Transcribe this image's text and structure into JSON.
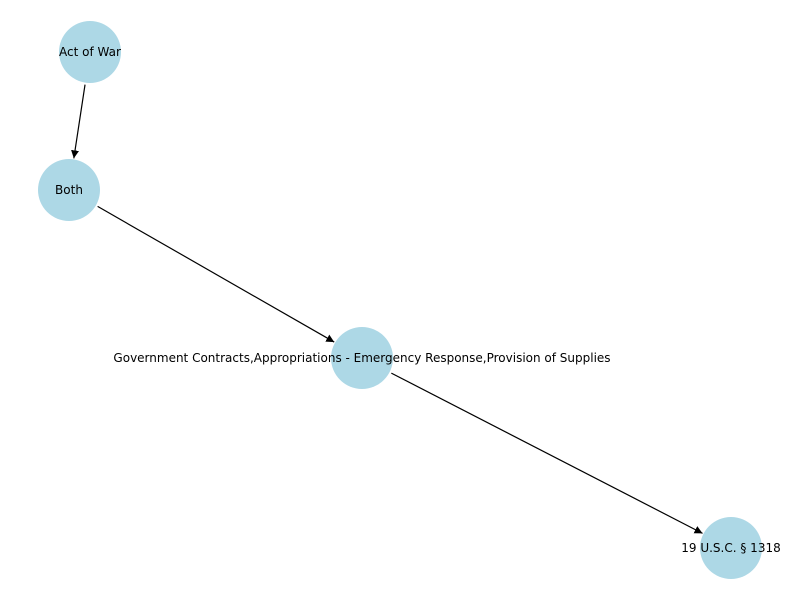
{
  "graph": {
    "nodes": [
      {
        "id": "act_of_war",
        "label": "Act of War"
      },
      {
        "id": "both",
        "label": "Both"
      },
      {
        "id": "gov_contracts",
        "label": "Government Contracts,Appropriations - Emergency Response,Provision of Supplies"
      },
      {
        "id": "usc_1318",
        "label": "19 U.S.C. § 1318"
      }
    ],
    "edges": [
      {
        "from": "act_of_war",
        "to": "both"
      },
      {
        "from": "both",
        "to": "gov_contracts"
      },
      {
        "from": "gov_contracts",
        "to": "usc_1318"
      }
    ],
    "node_color": "#add8e6",
    "edge_color": "#000000"
  }
}
